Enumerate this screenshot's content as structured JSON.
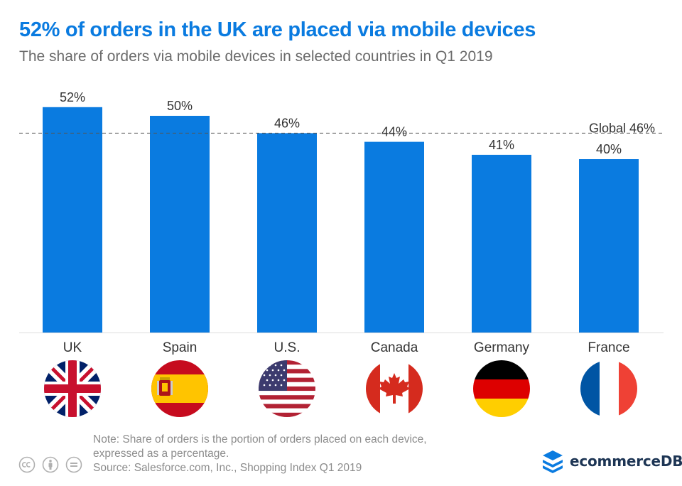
{
  "title": "52% of orders in the UK are placed via mobile devices",
  "subtitle": "The share of orders via mobile devices in selected countries in Q1 2019",
  "chart_data": {
    "type": "bar",
    "title": "52% of orders in the UK are placed via mobile devices",
    "subtitle": "The share of orders via mobile devices in selected countries in Q1 2019",
    "categories": [
      "UK",
      "Spain",
      "U.S.",
      "Canada",
      "Germany",
      "France"
    ],
    "values": [
      52,
      50,
      46,
      44,
      41,
      40
    ],
    "value_labels": [
      "52%",
      "50%",
      "46%",
      "44%",
      "41%",
      "40%"
    ],
    "reference_line": {
      "value": 46,
      "label": "Global 46%"
    },
    "xlabel": "",
    "ylabel": "",
    "ylim": [
      0,
      60
    ],
    "grid": false,
    "bar_color": "#0a7be0",
    "flag_icons": [
      "uk-flag-icon",
      "spain-flag-icon",
      "us-flag-icon",
      "canada-flag-icon",
      "germany-flag-icon",
      "france-flag-icon"
    ]
  },
  "footer": {
    "note_line1": "Note: Share of orders is the portion of orders placed on each device,",
    "note_line2": "expressed as a percentage.",
    "source": "Source: Salesforce.com, Inc., Shopping Index Q1 2019"
  },
  "brand": {
    "name": "ecommerceDB",
    "icon": "layers-logo-icon"
  },
  "license_icons": [
    "cc-icon",
    "by-icon",
    "nd-icon"
  ],
  "colors": {
    "accent": "#0a7be0",
    "title": "#0a7be0",
    "subtitle": "#6b6b6b",
    "label": "#333333",
    "note": "#8c8c8c",
    "brand": "#1d3554"
  }
}
